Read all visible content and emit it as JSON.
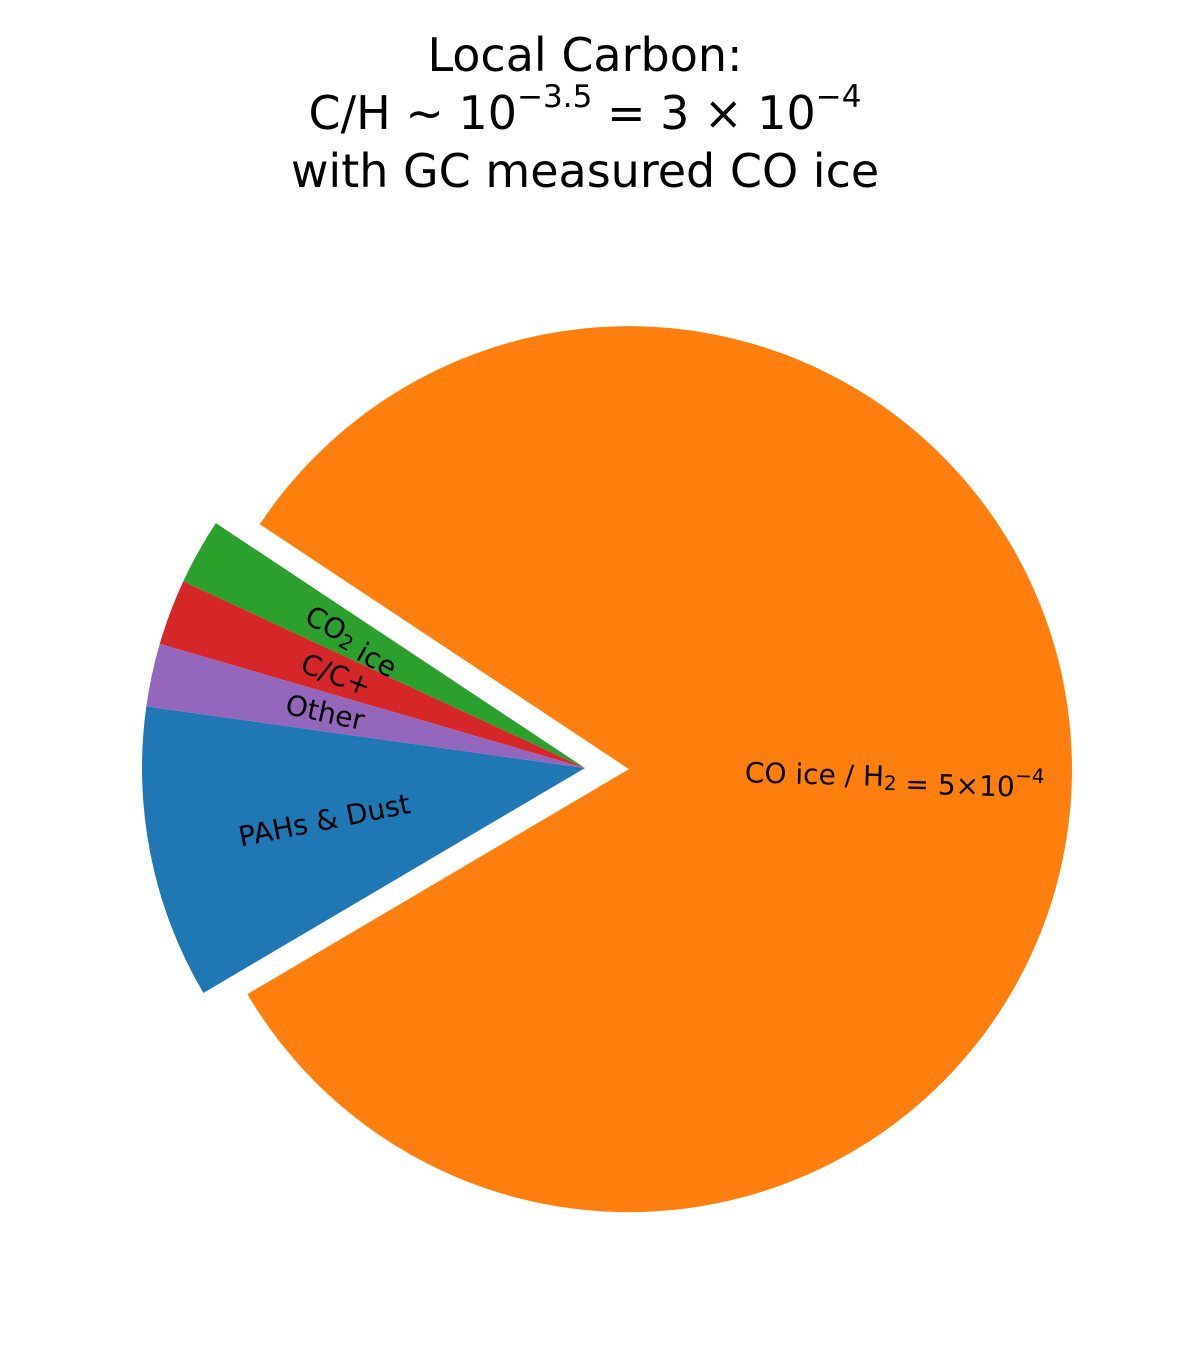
{
  "title": {
    "line1": "Local Carbon:",
    "line2_prefix": "C/H ~ 10",
    "line2_exp1": "−3.5",
    "line2_middle": " = 3 × 10",
    "line2_exp2": "−4",
    "line3": "with GC measured CO ice"
  },
  "chart_data": {
    "type": "pie",
    "title": "Local Carbon: C/H ~ 10^-3.5 = 3 × 10^-4 with GC measured CO ice",
    "labels": [
      "PAHs & Dust",
      "CO ice / H2 = 5×10^-4",
      "CO2 ice",
      "C/C+",
      "Other"
    ],
    "values": [
      10.7,
      82.2,
      2.4,
      2.4,
      2.3
    ],
    "units": "percent of total",
    "colors": [
      "#1f77b4",
      "#ff7f0e",
      "#2ca02c",
      "#d62728",
      "#9467bd"
    ],
    "start_angle_deg": 172,
    "exploded": [
      "CO ice / H2 = 5×10^-4"
    ],
    "label_placement": "inside, rotated",
    "legend": "none"
  },
  "slice_labels": [
    {
      "name": "pahs-dust-label",
      "parts": [
        {
          "t": "PAHs & Dust"
        }
      ]
    },
    {
      "name": "co-ice-label",
      "parts": [
        {
          "t": "CO ice / H"
        },
        {
          "t": "2",
          "sub": true
        },
        {
          "t": " = 5×10"
        },
        {
          "t": "−4",
          "sup": true
        }
      ]
    },
    {
      "name": "co2-ice-label",
      "parts": [
        {
          "t": "CO"
        },
        {
          "t": "2",
          "sub": true
        },
        {
          "t": " ice"
        }
      ]
    },
    {
      "name": "c-cplus-label",
      "parts": [
        {
          "t": "C/C+"
        }
      ]
    },
    {
      "name": "other-label",
      "parts": [
        {
          "t": "Other"
        }
      ]
    }
  ]
}
